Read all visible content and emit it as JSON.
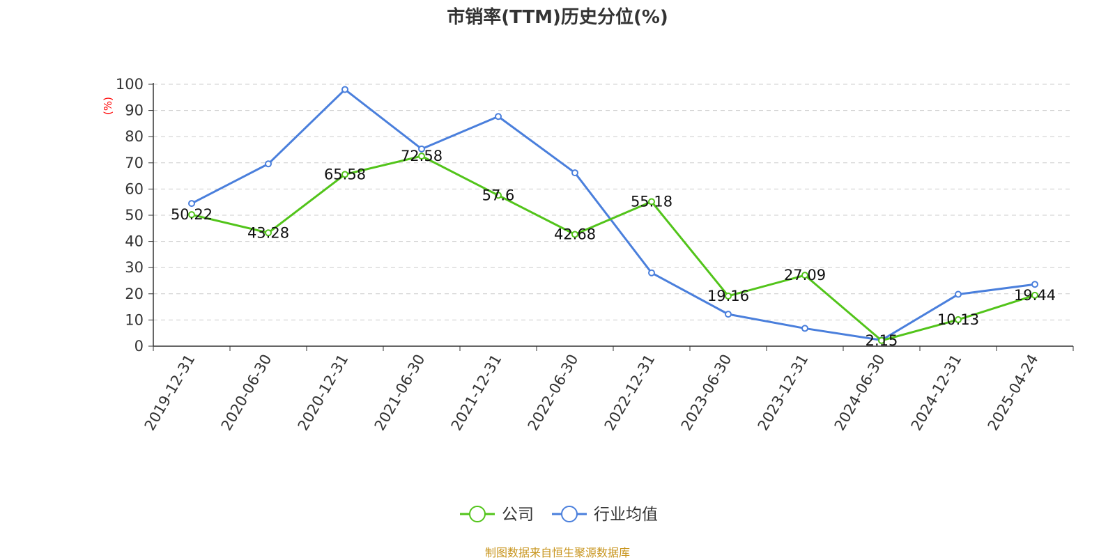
{
  "chart_data": {
    "type": "line",
    "title": "市销率(TTM)历史分位(%)",
    "ylabel": "(%)",
    "xlabel": "",
    "ylim": [
      0,
      100
    ],
    "yticks": [
      0,
      10,
      20,
      30,
      40,
      50,
      60,
      70,
      80,
      90,
      100
    ],
    "grid": true,
    "legend_position": "bottom",
    "categories": [
      "2019-12-31",
      "2020-06-30",
      "2020-12-31",
      "2021-06-30",
      "2021-12-31",
      "2022-06-30",
      "2022-12-31",
      "2023-06-30",
      "2023-12-31",
      "2024-06-30",
      "2024-12-31",
      "2025-04-24"
    ],
    "series": [
      {
        "name": "公司",
        "color": "#52c41a",
        "values": [
          50.22,
          43.28,
          65.58,
          72.58,
          57.6,
          42.68,
          55.18,
          19.16,
          27.09,
          2.15,
          10.13,
          19.44
        ],
        "labels": [
          "50.22",
          "43.28",
          "65.58",
          "72.58",
          "57.6",
          "42.68",
          "55.18",
          "19.16",
          "27.09",
          "2.15",
          "10.13",
          "19.44"
        ]
      },
      {
        "name": "行业均值",
        "color": "#4a7fdc",
        "values": [
          54.5,
          69.6,
          98,
          75.3,
          87.7,
          66.2,
          28,
          12.2,
          6.8,
          2.3,
          19.8,
          23.6
        ]
      }
    ]
  },
  "footer": {
    "source": "制图数据来自恒生聚源数据库"
  }
}
